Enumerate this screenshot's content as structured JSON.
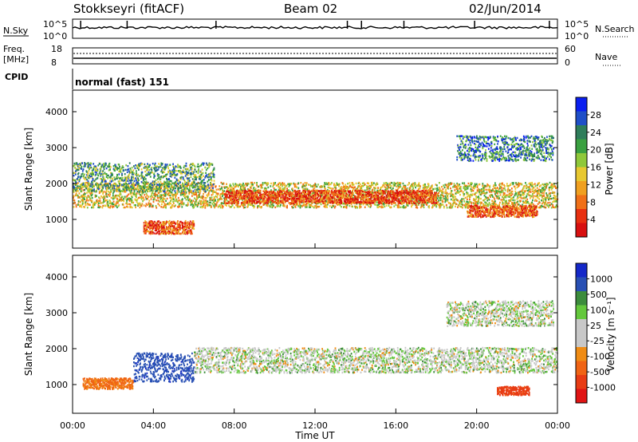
{
  "header": {
    "title": "Stokkseyri (fitACF)",
    "beam": "Beam 02",
    "date": "02/Jun/2014"
  },
  "noise_panel": {
    "left_label": "N.Sky",
    "right_label": "N.Search",
    "left_ticks": [
      "10^5",
      "10^0"
    ],
    "right_ticks": [
      "10^5",
      "10^0"
    ],
    "colors": {
      "line": "#000000"
    }
  },
  "freq_panel": {
    "left_label_1": "Freq.",
    "left_label_2": "[MHz]",
    "right_label": "Nave",
    "left_ticks": [
      "18",
      "8"
    ],
    "right_ticks": [
      "60",
      "0"
    ]
  },
  "cpid_panel": {
    "label": "CPID",
    "value": "normal (fast) 151"
  },
  "time_axis": {
    "label": "Time UT",
    "ticks": [
      "00:00",
      "04:00",
      "08:00",
      "12:00",
      "16:00",
      "20:00",
      "00:00"
    ]
  },
  "chart_data": [
    {
      "type": "heatmap",
      "name": "power",
      "ylabel": "Slant Range [km]",
      "yticks": [
        "4000",
        "3000",
        "2000",
        "1000"
      ],
      "ylim": [
        200,
        4600
      ],
      "colorbar": {
        "label": "Power [dB]",
        "ticks": [
          "28",
          "24",
          "20",
          "16",
          "12",
          "8",
          "4"
        ],
        "colors": [
          "#0a1ff0",
          "#1f4fc8",
          "#2e7d5a",
          "#3aa040",
          "#8fc83a",
          "#e8c830",
          "#f0a020",
          "#f07018",
          "#e83010",
          "#d81010"
        ]
      },
      "bands": [
        {
          "t0": 0.0,
          "t1": 24.0,
          "r_center": 1700,
          "r_width": 350,
          "level": 0.55
        },
        {
          "t0": 7.5,
          "t1": 18.0,
          "r_center": 1650,
          "r_width": 180,
          "level": 0.85
        },
        {
          "t0": 0.0,
          "t1": 7.0,
          "r_center": 2200,
          "r_width": 400,
          "level": 0.35
        },
        {
          "t0": 3.5,
          "t1": 6.0,
          "r_center": 800,
          "r_width": 180,
          "level": 0.8
        },
        {
          "t0": 19.5,
          "t1": 23.0,
          "r_center": 1250,
          "r_width": 160,
          "level": 0.8
        },
        {
          "t0": 19.0,
          "t1": 23.8,
          "r_center": 3000,
          "r_width": 350,
          "level": 0.25
        }
      ]
    },
    {
      "type": "heatmap",
      "name": "velocity",
      "ylabel": "Slant Range [km]",
      "yticks": [
        "4000",
        "3000",
        "2000",
        "1000"
      ],
      "ylim": [
        200,
        4600
      ],
      "colorbar": {
        "label": "Velocity [m s⁻¹]",
        "ticks": [
          "1000",
          "500",
          "100",
          "25",
          "-25",
          "-100",
          "-500",
          "-1000"
        ],
        "colors": [
          "#1428c8",
          "#2850b4",
          "#3c8c3c",
          "#64c83c",
          "#c8c8c8",
          "#c8c8c8",
          "#f08c14",
          "#f06414",
          "#e83c14",
          "#e01414"
        ]
      },
      "bands": [
        {
          "t0": 6.0,
          "t1": 24.0,
          "r_center": 1700,
          "r_width": 350,
          "value": 0
        },
        {
          "t0": 0.5,
          "t1": 3.0,
          "r_center": 1050,
          "r_width": 150,
          "value": -450
        },
        {
          "t0": 3.0,
          "t1": 6.0,
          "r_center": 1500,
          "r_width": 400,
          "value": 600
        },
        {
          "t0": 21.0,
          "t1": 22.6,
          "r_center": 850,
          "r_width": 120,
          "value": -700
        },
        {
          "t0": 18.5,
          "t1": 23.8,
          "r_center": 3000,
          "r_width": 350,
          "value": 0
        }
      ]
    }
  ]
}
